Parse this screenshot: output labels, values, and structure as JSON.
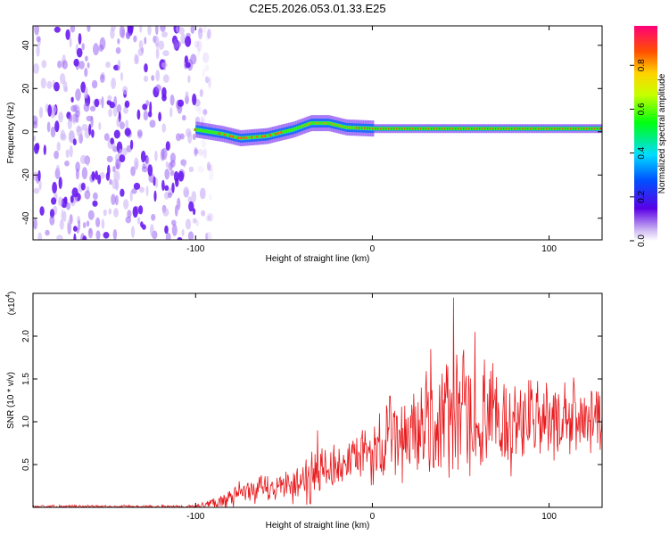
{
  "title": "C2E5.2026.053.01.33.E25",
  "chart_data": [
    {
      "type": "heatmap",
      "xlabel": "Height of straight line (km)",
      "ylabel": "Frequency (Hz)",
      "xlim": [
        -192,
        130
      ],
      "ylim": [
        -50,
        49
      ],
      "xticks": [
        -100,
        0,
        100
      ],
      "yticks": [
        -40,
        -20,
        0,
        20,
        40
      ],
      "colorbar": {
        "label": "Normalized spectral amplitude",
        "ticks": [
          0.0,
          0.2,
          0.4,
          0.6,
          0.8
        ],
        "range": [
          0,
          0.98
        ]
      },
      "noise_region_x": [
        -192,
        -100
      ],
      "signal_trace": [
        {
          "x": -100,
          "y": 1
        },
        {
          "x": -85,
          "y": -1
        },
        {
          "x": -75,
          "y": -3
        },
        {
          "x": -60,
          "y": -2
        },
        {
          "x": -45,
          "y": 1
        },
        {
          "x": -35,
          "y": 4
        },
        {
          "x": -25,
          "y": 4
        },
        {
          "x": -15,
          "y": 2
        },
        {
          "x": 0,
          "y": 1.5
        },
        {
          "x": 130,
          "y": 1.5
        }
      ]
    },
    {
      "type": "line",
      "xlabel": "Height of straight line (km)",
      "ylabel": "SNR (10 * v/v)",
      "scale_label": "(x10",
      "scale_exp": "4",
      "xlim": [
        -192,
        130
      ],
      "ylim": [
        0,
        2.5
      ],
      "xticks": [
        -100,
        0,
        100
      ],
      "yticks": [
        0.5,
        1.0,
        1.5,
        2.0
      ],
      "series": [
        {
          "name": "SNR",
          "color": "#e8191c",
          "envelope": [
            {
              "x": -192,
              "base": 0.01,
              "amp": 0.02
            },
            {
              "x": -100,
              "base": 0.01,
              "amp": 0.02
            },
            {
              "x": -90,
              "base": 0.05,
              "amp": 0.08
            },
            {
              "x": -80,
              "base": 0.12,
              "amp": 0.15
            },
            {
              "x": -65,
              "base": 0.2,
              "amp": 0.2
            },
            {
              "x": -50,
              "base": 0.25,
              "amp": 0.2
            },
            {
              "x": -35,
              "base": 0.35,
              "amp": 0.4
            },
            {
              "x": -25,
              "base": 0.45,
              "amp": 0.3
            },
            {
              "x": -15,
              "base": 0.5,
              "amp": 0.3
            },
            {
              "x": 0,
              "base": 0.65,
              "amp": 0.45
            },
            {
              "x": 20,
              "base": 0.85,
              "amp": 0.65
            },
            {
              "x": 45,
              "base": 1.05,
              "amp": 0.9
            },
            {
              "x": 70,
              "base": 1.0,
              "amp": 0.75
            },
            {
              "x": 100,
              "base": 1.0,
              "amp": 0.55
            },
            {
              "x": 130,
              "base": 1.05,
              "amp": 0.45
            }
          ],
          "peaks": [
            {
              "x": 46,
              "y": 2.45
            },
            {
              "x": 58,
              "y": 2.05
            },
            {
              "x": 33,
              "y": 1.85
            },
            {
              "x": 10,
              "y": 1.3
            },
            {
              "x": -31,
              "y": 0.9
            }
          ]
        }
      ]
    }
  ]
}
